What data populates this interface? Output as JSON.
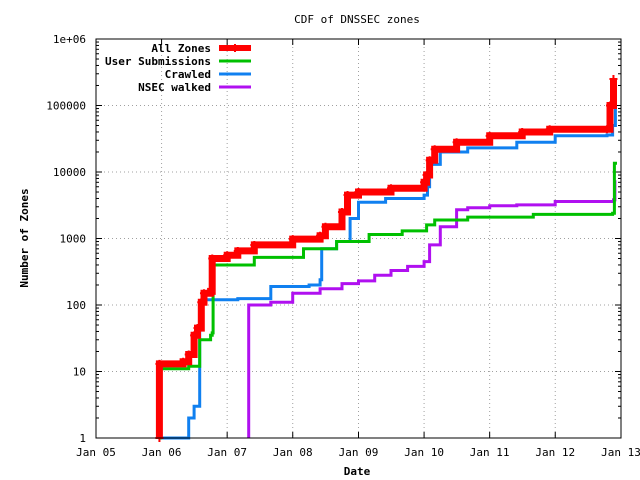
{
  "chart_data": {
    "type": "line",
    "title": "CDF of DNSSEC zones",
    "xlabel": "Date",
    "ylabel": "Number of Zones",
    "y_scale": "log",
    "ylim": [
      1,
      1000000
    ],
    "xlim": [
      "2005-01-01",
      "2013-01-01"
    ],
    "x_ticks": [
      {
        "date": "2005-01-01",
        "label": "Jan 05"
      },
      {
        "date": "2006-01-01",
        "label": "Jan 06"
      },
      {
        "date": "2007-01-01",
        "label": "Jan 07"
      },
      {
        "date": "2008-01-01",
        "label": "Jan 08"
      },
      {
        "date": "2009-01-01",
        "label": "Jan 09"
      },
      {
        "date": "2010-01-01",
        "label": "Jan 10"
      },
      {
        "date": "2011-01-01",
        "label": "Jan 11"
      },
      {
        "date": "2012-01-01",
        "label": "Jan 12"
      },
      {
        "date": "2013-01-01",
        "label": "Jan 13"
      }
    ],
    "y_ticks": [
      {
        "value": 1,
        "label": "1"
      },
      {
        "value": 10,
        "label": "10"
      },
      {
        "value": 100,
        "label": "100"
      },
      {
        "value": 1000,
        "label": "1000"
      },
      {
        "value": 10000,
        "label": "10000"
      },
      {
        "value": 100000,
        "label": "100000"
      },
      {
        "value": 1000000,
        "label": "1e+06"
      }
    ],
    "grid": true,
    "legend_position": "top-left",
    "series": [
      {
        "name": "All Zones",
        "color": "#ff0000",
        "marker": "plus",
        "points": [
          [
            "2005-12-20",
            1
          ],
          [
            "2005-12-20",
            13
          ],
          [
            "2006-05-01",
            14
          ],
          [
            "2006-06-01",
            18
          ],
          [
            "2006-07-01",
            35
          ],
          [
            "2006-07-20",
            45
          ],
          [
            "2006-08-10",
            110
          ],
          [
            "2006-08-25",
            150
          ],
          [
            "2006-10-01",
            160
          ],
          [
            "2006-10-10",
            500
          ],
          [
            "2007-01-01",
            560
          ],
          [
            "2007-03-01",
            650
          ],
          [
            "2007-06-01",
            800
          ],
          [
            "2008-01-01",
            980
          ],
          [
            "2008-06-01",
            1100
          ],
          [
            "2008-07-01",
            1500
          ],
          [
            "2008-10-01",
            2500
          ],
          [
            "2008-11-01",
            4500
          ],
          [
            "2009-01-01",
            5000
          ],
          [
            "2009-07-01",
            5700
          ],
          [
            "2010-01-01",
            7000
          ],
          [
            "2010-01-15",
            9000
          ],
          [
            "2010-02-01",
            15000
          ],
          [
            "2010-03-01",
            22000
          ],
          [
            "2010-07-01",
            28000
          ],
          [
            "2011-01-01",
            35000
          ],
          [
            "2011-07-01",
            40000
          ],
          [
            "2011-12-01",
            44000
          ],
          [
            "2012-10-15",
            44000
          ],
          [
            "2012-11-01",
            100000
          ],
          [
            "2012-11-20",
            250000
          ]
        ]
      },
      {
        "name": "User Submissions",
        "color": "#00c000",
        "marker": "none",
        "points": [
          [
            "2005-12-20",
            1
          ],
          [
            "2005-12-25",
            11
          ],
          [
            "2006-06-01",
            12
          ],
          [
            "2006-08-01",
            30
          ],
          [
            "2006-10-01",
            35
          ],
          [
            "2006-10-10",
            38
          ],
          [
            "2006-10-15",
            400
          ],
          [
            "2007-06-01",
            520
          ],
          [
            "2008-03-01",
            700
          ],
          [
            "2008-09-01",
            900
          ],
          [
            "2009-03-01",
            1150
          ],
          [
            "2009-09-01",
            1300
          ],
          [
            "2010-01-15",
            1600
          ],
          [
            "2010-03-01",
            1900
          ],
          [
            "2010-09-01",
            2100
          ],
          [
            "2011-09-01",
            2300
          ],
          [
            "2012-11-15",
            2400
          ],
          [
            "2012-11-25",
            13500
          ],
          [
            "2012-12-10",
            13500
          ]
        ]
      },
      {
        "name": "Crawled",
        "color": "#1080f0",
        "marker": "none",
        "points": [
          [
            "2005-12-25",
            1
          ],
          [
            "2006-06-01",
            2
          ],
          [
            "2006-07-01",
            3
          ],
          [
            "2006-08-01",
            100
          ],
          [
            "2006-08-15",
            120
          ],
          [
            "2007-03-01",
            125
          ],
          [
            "2007-09-01",
            190
          ],
          [
            "2008-04-01",
            200
          ],
          [
            "2008-06-01",
            240
          ],
          [
            "2008-06-10",
            700
          ],
          [
            "2008-09-01",
            900
          ],
          [
            "2008-11-15",
            2000
          ],
          [
            "2009-01-01",
            3500
          ],
          [
            "2009-06-01",
            4000
          ],
          [
            "2010-01-01",
            4500
          ],
          [
            "2010-01-20",
            6000
          ],
          [
            "2010-02-01",
            13000
          ],
          [
            "2010-04-01",
            20000
          ],
          [
            "2010-09-01",
            23000
          ],
          [
            "2011-06-01",
            28000
          ],
          [
            "2012-01-01",
            35000
          ],
          [
            "2012-10-15",
            36000
          ],
          [
            "2012-11-15",
            50000
          ],
          [
            "2012-12-01",
            180000
          ]
        ]
      },
      {
        "name": "NSEC walked",
        "color": "#b010f0",
        "marker": "none",
        "points": [
          [
            "2007-05-01",
            1
          ],
          [
            "2007-05-01",
            100
          ],
          [
            "2007-09-01",
            110
          ],
          [
            "2008-01-01",
            150
          ],
          [
            "2008-06-01",
            175
          ],
          [
            "2008-10-01",
            210
          ],
          [
            "2009-01-01",
            230
          ],
          [
            "2009-04-01",
            280
          ],
          [
            "2009-07-01",
            330
          ],
          [
            "2009-10-01",
            380
          ],
          [
            "2010-01-01",
            450
          ],
          [
            "2010-02-01",
            800
          ],
          [
            "2010-04-01",
            1500
          ],
          [
            "2010-07-01",
            2700
          ],
          [
            "2010-09-01",
            2900
          ],
          [
            "2011-01-01",
            3100
          ],
          [
            "2011-06-01",
            3200
          ],
          [
            "2012-01-01",
            3600
          ],
          [
            "2012-11-20",
            3800
          ],
          [
            "2012-11-28",
            7500
          ]
        ]
      }
    ]
  }
}
